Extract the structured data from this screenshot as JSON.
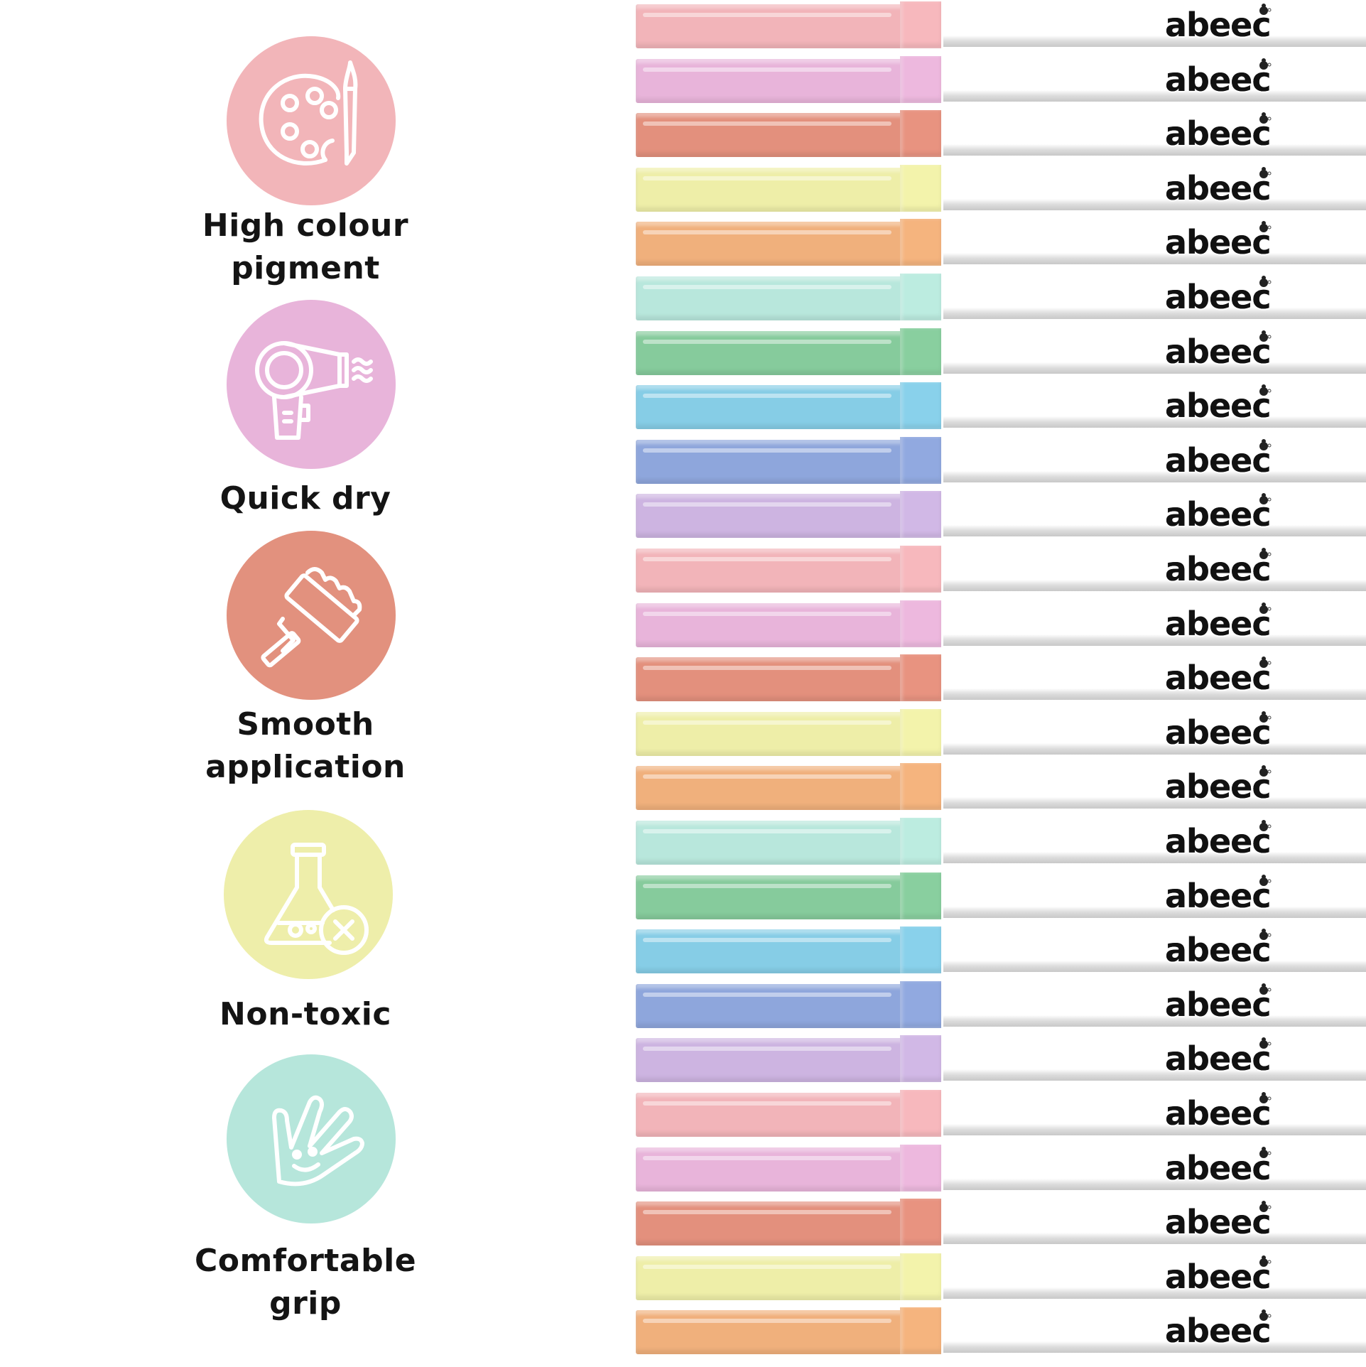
{
  "features": [
    {
      "label_lines": [
        "High colour",
        "pigment"
      ],
      "icon": "palette-brush-icon",
      "color": "#f2b5b9"
    },
    {
      "label_lines": [
        "Quick dry"
      ],
      "icon": "hair-dryer-icon",
      "color": "#e8b4da"
    },
    {
      "label_lines": [
        "Smooth",
        "application"
      ],
      "icon": "paint-roller-icon",
      "color": "#e2917e"
    },
    {
      "label_lines": [
        "Non-toxic"
      ],
      "icon": "flask-no-icon",
      "color": "#eeeeaa"
    },
    {
      "label_lines": [
        "Comfortable",
        "grip"
      ],
      "icon": "hand-smile-icon",
      "color": "#b6e6db"
    }
  ],
  "brand": "abeec",
  "marker_colors": [
    "#f2b4b9",
    "#e8b4da",
    "#e3907d",
    "#eeeea8",
    "#f0b07c",
    "#b8e7dc",
    "#86cb9c",
    "#86cde6",
    "#8ea6dc",
    "#cdb4e1"
  ],
  "marker_count": 25
}
